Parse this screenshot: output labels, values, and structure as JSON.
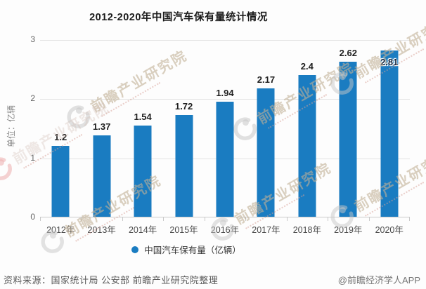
{
  "title": "2012-2020年中国汽车保有量统计情况",
  "chart_data": {
    "type": "bar",
    "title": "2012-2020年中国汽车保有量统计情况",
    "categories": [
      "2012年",
      "2013年",
      "2014年",
      "2015年",
      "2016年",
      "2017年",
      "2018年",
      "2019年",
      "2020年"
    ],
    "values": [
      1.2,
      1.37,
      1.54,
      1.72,
      1.94,
      2.17,
      2.4,
      2.62,
      2.81
    ],
    "series_name": "中国汽车保有量（亿辆）",
    "xlabel": "",
    "ylabel": "单位：亿辆",
    "ylim": [
      0,
      3
    ],
    "yticks": [
      0,
      1,
      2,
      3
    ],
    "grid": true,
    "legend_position": "bottom",
    "bar_color": "#1a7cc1",
    "last_label_inside": true
  },
  "y_axis": {
    "unit_label": "单位：亿辆"
  },
  "legend": {
    "label": "中国汽车保有量（亿辆）"
  },
  "watermark": {
    "text": "前瞻产业研究院"
  },
  "footer": {
    "source": "资料来源：国家统计局 公安部 前瞻产业研究院整理",
    "credit": "@前瞻经济学人APP"
  }
}
